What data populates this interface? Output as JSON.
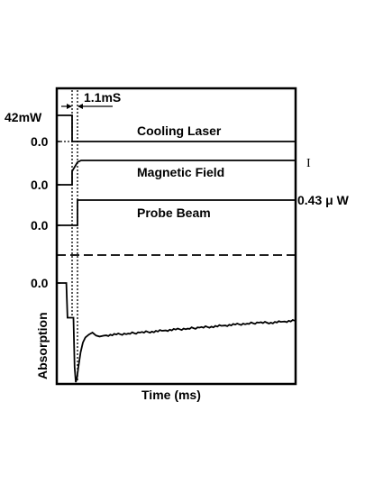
{
  "chart_data": {
    "type": "line",
    "title": "",
    "xlabel": "Time (ms)",
    "ylabel": "Absorption",
    "grid": false,
    "annotations": {
      "interval": "1.1mS",
      "marker": "I"
    },
    "cooling_laser": {
      "name": "Cooling Laser",
      "high_label": "42mW",
      "zero_label": "0.0"
    },
    "magnetic_field": {
      "name": "Magnetic Field",
      "zero_label": "0.0"
    },
    "probe_beam": {
      "name": "Probe Beam",
      "zero_label": "0.0",
      "high_label": "0.43 μ W"
    },
    "absorption": {
      "zero_label": "0.0",
      "t": [
        0.0,
        0.04,
        0.045,
        0.07,
        0.075,
        0.08,
        0.085,
        0.09,
        0.1,
        0.11,
        0.12,
        0.135,
        0.15,
        0.165,
        0.18,
        0.2,
        0.25,
        0.3,
        0.35,
        0.4,
        0.45,
        0.5,
        0.55,
        0.6,
        0.65,
        0.7,
        0.75,
        0.8,
        0.85,
        0.9,
        0.95,
        1.0
      ],
      "value": [
        0.0,
        0.0,
        -0.35,
        -0.35,
        -0.85,
        -1.0,
        -0.96,
        -0.86,
        -0.7,
        -0.6,
        -0.55,
        -0.52,
        -0.5,
        -0.53,
        -0.54,
        -0.53,
        -0.52,
        -0.51,
        -0.5,
        -0.49,
        -0.48,
        -0.47,
        -0.46,
        -0.45,
        -0.44,
        -0.43,
        -0.42,
        -0.41,
        -0.4,
        -0.4,
        -0.39,
        -0.38
      ]
    }
  }
}
